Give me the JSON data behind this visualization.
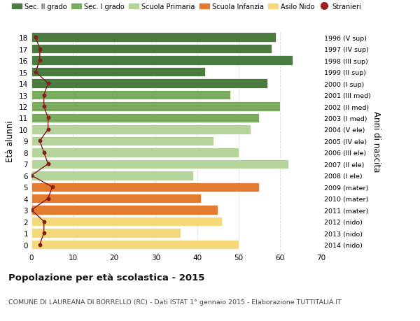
{
  "ages": [
    18,
    17,
    16,
    15,
    14,
    13,
    12,
    11,
    10,
    9,
    8,
    7,
    6,
    5,
    4,
    3,
    2,
    1,
    0
  ],
  "bar_values": [
    59,
    58,
    63,
    42,
    57,
    48,
    60,
    55,
    53,
    44,
    50,
    62,
    39,
    55,
    41,
    45,
    46,
    36,
    50
  ],
  "stranieri_values": [
    1,
    2,
    2,
    1,
    4,
    3,
    3,
    4,
    4,
    2,
    3,
    4,
    0,
    5,
    4,
    0,
    3,
    3,
    2
  ],
  "bar_colors": [
    "#4a7c3f",
    "#4a7c3f",
    "#4a7c3f",
    "#4a7c3f",
    "#4a7c3f",
    "#7aab5e",
    "#7aab5e",
    "#7aab5e",
    "#b5d49a",
    "#b5d49a",
    "#b5d49a",
    "#b5d49a",
    "#b5d49a",
    "#e07b30",
    "#e07b30",
    "#e07b30",
    "#f5d87a",
    "#f5d87a",
    "#f5d87a"
  ],
  "right_labels": [
    "1996 (V sup)",
    "1997 (IV sup)",
    "1998 (III sup)",
    "1999 (II sup)",
    "2000 (I sup)",
    "2001 (III med)",
    "2002 (II med)",
    "2003 (I med)",
    "2004 (V ele)",
    "2005 (IV ele)",
    "2006 (III ele)",
    "2007 (II ele)",
    "2008 (I ele)",
    "2009 (mater)",
    "2010 (mater)",
    "2011 (mater)",
    "2012 (nido)",
    "2013 (nido)",
    "2014 (nido)"
  ],
  "legend_labels": [
    "Sec. II grado",
    "Sec. I grado",
    "Scuola Primaria",
    "Scuola Infanzia",
    "Asilo Nido",
    "Stranieri"
  ],
  "legend_colors": [
    "#4a7c3f",
    "#7aab5e",
    "#b5d49a",
    "#e07b30",
    "#f5d87a",
    "#a02020"
  ],
  "ylabel": "Età alunni",
  "ylabel_right": "Anni di nascita",
  "title": "Popolazione per età scolastica - 2015",
  "subtitle": "COMUNE DI LAUREANA DI BORRELLO (RC) - Dati ISTAT 1° gennaio 2015 - Elaborazione TUTTITALIA.IT",
  "xlim": [
    0,
    70
  ],
  "xticks": [
    0,
    10,
    20,
    30,
    40,
    50,
    60,
    70
  ],
  "bg_color": "#ffffff",
  "grid_color": "#cccccc",
  "stranieri_line_color": "#8b1a1a",
  "stranieri_dot_color": "#8b1a1a"
}
